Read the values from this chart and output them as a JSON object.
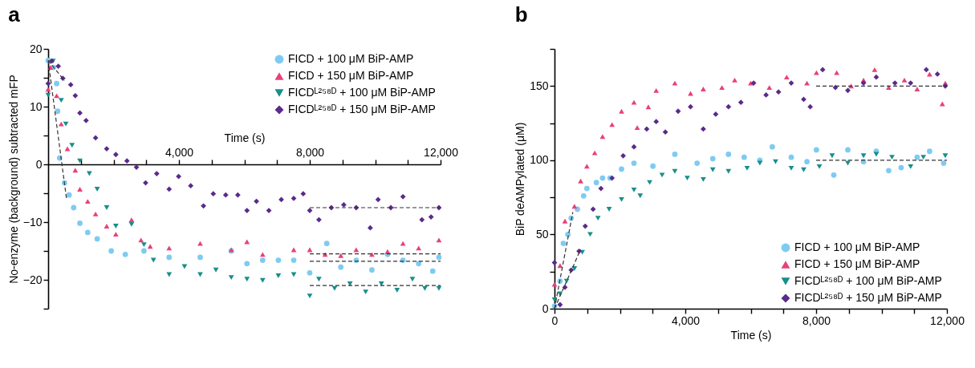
{
  "chart_data": [
    {
      "type": "scatter",
      "annotations": [
        "a"
      ],
      "xlabel": "Time (s)",
      "ylabel": "No-enzyme (background) subtracted mFP",
      "legend": "top right",
      "xlim": [
        0,
        12000
      ],
      "xticks": [
        {
          "value": 1000,
          "label": null
        },
        {
          "value": 2000,
          "label": null
        },
        {
          "value": 3000,
          "label": null
        },
        {
          "value": 4000,
          "label": "4,000"
        },
        {
          "value": 5000,
          "label": null
        },
        {
          "value": 6000,
          "label": null
        },
        {
          "value": 7000,
          "label": null
        },
        {
          "value": 8000,
          "label": "8,000"
        },
        {
          "value": 9000,
          "label": null
        },
        {
          "value": 10000,
          "label": null
        },
        {
          "value": 11000,
          "label": null
        },
        {
          "value": 12000,
          "label": "12,000"
        }
      ],
      "ylim": [
        -25,
        20
      ],
      "yticks": [
        {
          "value": -25,
          "label": null
        },
        {
          "value": -20,
          "label": "−20"
        },
        {
          "value": -15,
          "label": null
        },
        {
          "value": -10,
          "label": "−10"
        },
        {
          "value": -5,
          "label": null
        },
        0,
        {
          "value": 5,
          "label": null
        },
        10,
        {
          "value": 15,
          "label": null
        },
        20
      ],
      "series": [
        {
          "name": "FICD + 100 μM BiP-AMP",
          "color": "#7ecbf2",
          "marker": "circle",
          "x": [
            0,
            160,
            260,
            290,
            350,
            500,
            640,
            780,
            970,
            1210,
            1500,
            1930,
            2360,
            2930,
            3700,
            4650,
            5600,
            6080,
            6560,
            7040,
            7510,
            8000,
            8520,
            8950,
            9420,
            9900,
            10380,
            10850,
            11330,
            11760,
            11950
          ],
          "values": [
            18,
            16.8,
            14,
            9.2,
            1.1,
            -3.2,
            -5.3,
            -7.5,
            -10.2,
            -11.8,
            -12.9,
            -15,
            -15.6,
            -15,
            -16.1,
            -16.1,
            -15,
            -17.2,
            -16.6,
            -16.6,
            -16.6,
            -18.8,
            -13.7,
            -17.8,
            -16.6,
            -18.3,
            -15.6,
            -16.6,
            -17.2,
            -18.5,
            -16.1
          ]
        },
        {
          "name": "FICD + 150 μM BiP-AMP",
          "color": "#e8407a",
          "marker": "triangle",
          "x": [
            0,
            70,
            260,
            400,
            590,
            830,
            970,
            1210,
            1450,
            1790,
            2070,
            2550,
            2840,
            3120,
            3700,
            4650,
            5600,
            6080,
            6560,
            7510,
            8000,
            8470,
            8950,
            9420,
            9900,
            10380,
            10850,
            11330,
            11950
          ],
          "values": [
            13,
            16.8,
            11.9,
            7,
            2.7,
            -1,
            -4.3,
            -6.4,
            -8.6,
            -10.7,
            -12.1,
            -9.6,
            -13.1,
            -14.2,
            -14.5,
            -13.7,
            -14.8,
            -13.4,
            -15.6,
            -14.8,
            -14.8,
            -15.6,
            -15.8,
            -14.8,
            -15.6,
            -15.1,
            -13.7,
            -14.5,
            -13.1
          ]
        },
        {
          "name": "FICDᴸ²⁵⁸ᴰ + 100 μM BiP-AMP",
          "color": "#178f8c",
          "marker": "triangle-down",
          "x": [
            0,
            150,
            400,
            540,
            730,
            970,
            1260,
            1500,
            1790,
            2070,
            2550,
            2930,
            3220,
            3700,
            4170,
            4650,
            5130,
            5600,
            6080,
            6560,
            7040,
            7510,
            8000,
            8280,
            8760,
            9230,
            9710,
            10190,
            10670,
            11140,
            11520,
            11950
          ],
          "values": [
            12,
            17.9,
            11.1,
            7,
            3.3,
            0.6,
            -1.6,
            -4.3,
            -7.5,
            -10.7,
            -10.4,
            -13.9,
            -16.6,
            -19.1,
            -17.7,
            -19.1,
            -18.3,
            -19.6,
            -19.9,
            -20.1,
            -19.3,
            -19.1,
            -22.8,
            -19.9,
            -21.5,
            -20.7,
            -22.1,
            -20.7,
            -21.8,
            -19.9,
            -21.5,
            -21.5
          ]
        },
        {
          "name": "FICDᴸ²⁵⁸ᴰ + 150 μM BiP-AMP",
          "color": "#5a2a8c",
          "marker": "diamond",
          "x": [
            0,
            110,
            310,
            450,
            690,
            830,
            970,
            1160,
            1450,
            1790,
            2070,
            2410,
            2700,
            2980,
            3320,
            3700,
            3990,
            4360,
            4750,
            5050,
            5430,
            5800,
            6080,
            6370,
            6750,
            7130,
            7510,
            7800,
            8000,
            8280,
            8660,
            9040,
            9420,
            9850,
            10090,
            10480,
            10850,
            11430,
            11710,
            11950
          ],
          "values": [
            14,
            17.9,
            17,
            14.9,
            13.8,
            11.9,
            8.9,
            7.6,
            4.6,
            2.7,
            1.7,
            0.6,
            -0.5,
            -3.2,
            -1.6,
            -4.3,
            -2.1,
            -3.7,
            -7.2,
            -5.1,
            -5.3,
            -5.3,
            -8,
            -6.4,
            -8,
            -6.1,
            -5.9,
            -5.1,
            -8,
            -9.6,
            -7.5,
            -7,
            -7.5,
            -11,
            -6.1,
            -7.5,
            -5.6,
            -9.6,
            -9.1,
            -7.5
          ]
        },
        {
          "type": "line",
          "color": "#333333",
          "line_style": "dashed",
          "marker": "none",
          "x": [
            0,
            560
          ],
          "values": [
            18,
            -5.9
          ]
        },
        {
          "type": "line",
          "color": "#333333",
          "line_style": "dashed",
          "marker": "none",
          "x": [
            0,
            500
          ],
          "values": [
            18,
            14.5
          ]
        },
        {
          "type": "line",
          "color": "#333333",
          "line_style": "dashed",
          "marker": "none",
          "x": [
            8000,
            12000
          ],
          "values": [
            -7.5,
            -7.5
          ]
        },
        {
          "type": "line",
          "color": "#333333",
          "line_style": "dashed",
          "marker": "none",
          "x": [
            8000,
            12000
          ],
          "values": [
            -15.5,
            -15.5
          ]
        },
        {
          "type": "line",
          "color": "#333333",
          "line_style": "dashed",
          "marker": "none",
          "x": [
            8000,
            12000
          ],
          "values": [
            -16.8,
            -16.8
          ]
        },
        {
          "type": "line",
          "color": "#333333",
          "line_style": "dashed",
          "marker": "none",
          "x": [
            8000,
            12000
          ],
          "values": [
            -21,
            -21
          ]
        }
      ]
    },
    {
      "type": "scatter",
      "annotations": [
        "b"
      ],
      "xlabel": "Time (s)",
      "ylabel": "BiP deAMPylated (μM)",
      "legend": "bottom right",
      "xlim": [
        0,
        12000
      ],
      "xticks": [
        0,
        {
          "value": 1000,
          "label": null
        },
        {
          "value": 2000,
          "label": null
        },
        {
          "value": 3000,
          "label": null
        },
        {
          "value": 4000,
          "label": "4,000"
        },
        {
          "value": 5000,
          "label": null
        },
        {
          "value": 6000,
          "label": null
        },
        {
          "value": 7000,
          "label": null
        },
        {
          "value": 8000,
          "label": "8,000"
        },
        {
          "value": 9000,
          "label": null
        },
        {
          "value": 10000,
          "label": null
        },
        {
          "value": 11000,
          "label": null
        },
        {
          "value": 12000,
          "label": "12,000"
        }
      ],
      "ylim": [
        0,
        175
      ],
      "yticks": [
        0,
        {
          "value": 25,
          "label": null
        },
        50,
        {
          "value": 75,
          "label": null
        },
        100,
        {
          "value": 125,
          "label": null
        },
        150,
        {
          "value": 175,
          "label": null
        }
      ],
      "series": [
        {
          "name": "FICD + 100 μM BiP-AMP",
          "color": "#7ecbf2",
          "marker": "circle",
          "x": [
            0,
            170,
            270,
            410,
            510,
            700,
            890,
            990,
            1280,
            1470,
            1700,
            2050,
            2430,
            3010,
            3680,
            4360,
            4840,
            5320,
            5800,
            6280,
            6660,
            7240,
            7720,
            8010,
            8540,
            8970,
            9450,
            9840,
            10220,
            10600,
            11090,
            11470,
            11900
          ],
          "values": [
            1.7,
            18.6,
            44,
            50,
            61,
            67,
            76,
            81,
            85,
            88,
            88,
            94,
            98,
            96,
            104,
            98,
            101,
            104,
            102,
            100,
            109,
            102,
            99,
            107,
            90,
            107,
            99,
            106,
            93,
            95,
            102,
            106,
            98
          ]
        },
        {
          "name": "FICD + 150 μM BiP-AMP",
          "color": "#e8407a",
          "marker": "triangle",
          "x": [
            0,
            170,
            320,
            610,
            800,
            990,
            1230,
            1470,
            1760,
            2050,
            2430,
            2530,
            2870,
            3110,
            3680,
            4160,
            4550,
            5120,
            5510,
            6000,
            6570,
            7100,
            7720,
            8010,
            8630,
            9070,
            9450,
            9790,
            10220,
            10700,
            11090,
            11470,
            11860,
            11950
          ],
          "values": [
            16.5,
            29,
            59,
            69,
            86,
            96,
            105,
            116,
            124,
            133,
            139,
            122,
            136,
            147,
            152,
            145,
            148,
            149,
            154,
            152,
            149,
            156,
            152,
            159,
            159,
            150,
            154,
            161,
            149,
            154,
            148,
            158,
            138,
            152
          ]
        },
        {
          "name": "FICDᴸ²⁵⁸ᴰ + 100 μM BiP-AMP",
          "color": "#178f8c",
          "marker": "triangle-down",
          "x": [
            0,
            170,
            370,
            610,
            850,
            1090,
            1330,
            1670,
            2050,
            2430,
            2620,
            2910,
            3290,
            3680,
            4060,
            4550,
            4840,
            5320,
            5890,
            6280,
            6760,
            7240,
            7620,
            8100,
            8490,
            8970,
            9450,
            9840,
            10320,
            10890,
            11280,
            11950
          ],
          "values": [
            6,
            10,
            18.6,
            27,
            38,
            50,
            61,
            67,
            73.5,
            80,
            76,
            85,
            90,
            92.5,
            88,
            87,
            93.6,
            92.5,
            94.6,
            98,
            99,
            94.6,
            93.6,
            95.7,
            103,
            98,
            103,
            104,
            102,
            95.7,
            102,
            103
          ]
        },
        {
          "name": "FICDᴸ²⁵⁸ᴰ + 150 μM BiP-AMP",
          "color": "#5a2a8c",
          "marker": "diamond",
          "x": [
            0,
            170,
            320,
            510,
            750,
            940,
            1180,
            1420,
            1760,
            2100,
            2430,
            2820,
            3110,
            3390,
            3780,
            4160,
            4550,
            4930,
            5320,
            5700,
            6090,
            6470,
            6850,
            7240,
            7620,
            7820,
            8200,
            8590,
            8970,
            9450,
            9840,
            10410,
            10890,
            11370,
            11710,
            11950
          ],
          "values": [
            31,
            2.7,
            14.4,
            26,
            38.7,
            55.6,
            67,
            81,
            88,
            103,
            109,
            121,
            126,
            119,
            133,
            136,
            121,
            131,
            136,
            139,
            152,
            144,
            146,
            152,
            141,
            136,
            161,
            149,
            147,
            152,
            156,
            152,
            152,
            161,
            158,
            150
          ]
        },
        {
          "type": "line",
          "color": "#333333",
          "line_style": "dashed",
          "marker": "none",
          "x": [
            0,
            560
          ],
          "values": [
            0,
            65
          ]
        },
        {
          "type": "line",
          "color": "#333333",
          "line_style": "dashed",
          "marker": "none",
          "x": [
            0,
            800
          ],
          "values": [
            0,
            40
          ]
        },
        {
          "type": "line",
          "color": "#333333",
          "line_style": "dashed",
          "marker": "none",
          "x": [
            8000,
            12000
          ],
          "values": [
            150,
            150
          ]
        },
        {
          "type": "line",
          "color": "#333333",
          "line_style": "dashed",
          "marker": "none",
          "x": [
            8000,
            12000
          ],
          "values": [
            100,
            100
          ]
        }
      ]
    }
  ]
}
